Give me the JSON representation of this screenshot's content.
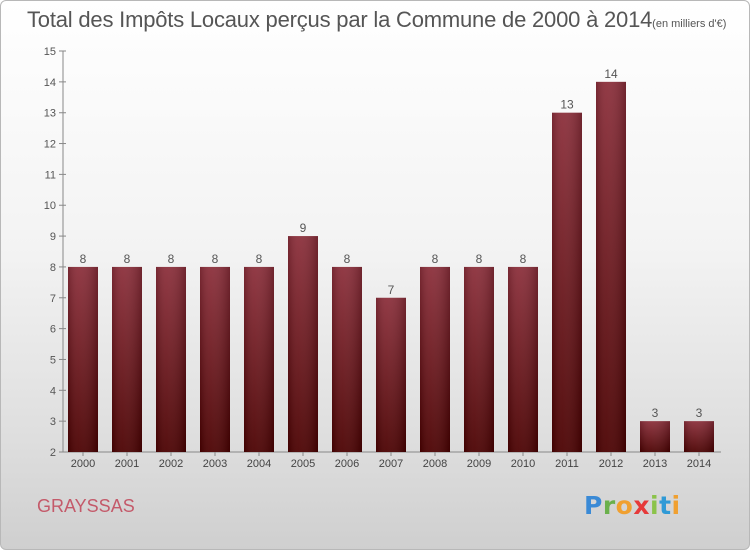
{
  "title": "Total des Impôts Locaux perçus par la Commune de 2000 à 2014",
  "unit": "(en milliers d'€)",
  "commune": "GRAYSSAS",
  "logo": "Proxiti",
  "colors": {
    "bar_top": "#8b2e3a",
    "bar_bottom": "#4a0000",
    "commune": "#c45a6a"
  },
  "chart_data": {
    "type": "bar",
    "categories": [
      "2000",
      "2001",
      "2002",
      "2003",
      "2004",
      "2005",
      "2006",
      "2007",
      "2008",
      "2009",
      "2010",
      "2011",
      "2012",
      "2013",
      "2014"
    ],
    "values": [
      8,
      8,
      8,
      8,
      8,
      9,
      8,
      7,
      8,
      8,
      8,
      13,
      14,
      3,
      3
    ],
    "ylim": [
      2,
      15
    ],
    "yticks": [
      2,
      3,
      4,
      5,
      6,
      7,
      8,
      9,
      10,
      11,
      12,
      13,
      14,
      15
    ],
    "grid": false
  }
}
